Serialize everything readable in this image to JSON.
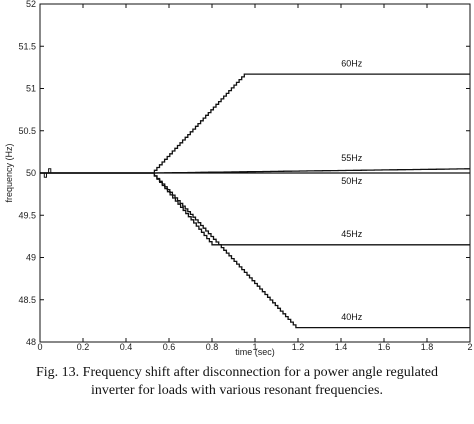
{
  "chart_data": {
    "type": "line",
    "xlabel": "time (sec)",
    "ylabel": "frequency (Hz)",
    "xlim": [
      0,
      2
    ],
    "ylim": [
      48,
      52
    ],
    "xticks": [
      0,
      0.2,
      0.4,
      0.6,
      0.8,
      1,
      1.2,
      1.4,
      1.6,
      1.8,
      2
    ],
    "yticks": [
      48,
      48.5,
      49,
      49.5,
      50,
      50.5,
      51,
      51.5,
      52
    ],
    "xtick_labels": [
      "0",
      "0.2",
      "0.4",
      "0.6",
      "0.8",
      "1",
      "1.2",
      "1.4",
      "1.6",
      "1.8",
      "2"
    ],
    "ytick_labels": [
      "48",
      "48.5",
      "49",
      "49.5",
      "50",
      "50.5",
      "51",
      "51.5",
      "52"
    ],
    "grid": false,
    "legend": "none",
    "series": [
      {
        "name": "60Hz",
        "x": [
          0,
          0.52,
          0.95,
          2
        ],
        "y": [
          50,
          50,
          51.17,
          51.17
        ]
      },
      {
        "name": "55Hz",
        "x": [
          0,
          0.52,
          2
        ],
        "y": [
          50,
          50,
          50.05
        ]
      },
      {
        "name": "50Hz",
        "x": [
          0,
          2
        ],
        "y": [
          50,
          50
        ]
      },
      {
        "name": "45Hz",
        "x": [
          0,
          0.52,
          0.8,
          2
        ],
        "y": [
          50,
          50,
          49.15,
          49.15
        ]
      },
      {
        "name": "40Hz",
        "x": [
          0,
          0.52,
          1.19,
          2
        ],
        "y": [
          50,
          50,
          48.17,
          48.17
        ]
      }
    ],
    "transient": {
      "x": [
        0.01,
        0.02,
        0.03,
        0.04,
        0.05
      ],
      "y": [
        50,
        49.95,
        50,
        50.05,
        50
      ]
    }
  },
  "caption": {
    "line1": "Fig. 13.  Frequency shift after disconnection for a power angle regulated",
    "line2": "inverter for loads with various resonant frequencies."
  }
}
